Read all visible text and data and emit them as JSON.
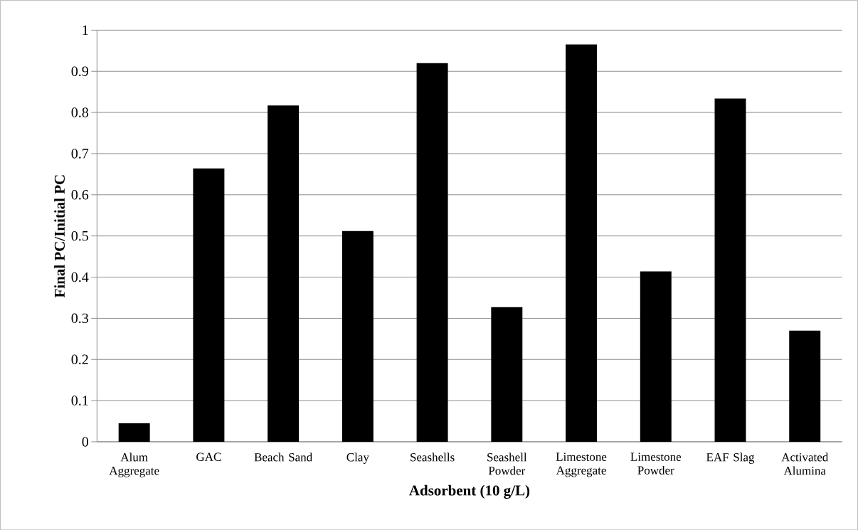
{
  "chart_data": {
    "type": "bar",
    "xlabel": "Adsorbent (10 g/L)",
    "ylabel": "Final PC/Initial PC",
    "categories": [
      "Alum Aggregate",
      "GAC",
      "Beach Sand",
      "Clay",
      "Seashells",
      "Seashell Powder",
      "Limestone Aggregate",
      "Limestone Powder",
      "EAF Slag",
      "Activated Alumina"
    ],
    "values": [
      0.045,
      0.664,
      0.817,
      0.512,
      0.92,
      0.327,
      0.965,
      0.414,
      0.834,
      0.27
    ],
    "color": "#000000",
    "ylim": [
      0,
      1
    ],
    "yticks": [
      0,
      0.1,
      0.2,
      0.3,
      0.4,
      0.5,
      0.6,
      0.7,
      0.8,
      0.9,
      1
    ],
    "grid": "y"
  }
}
